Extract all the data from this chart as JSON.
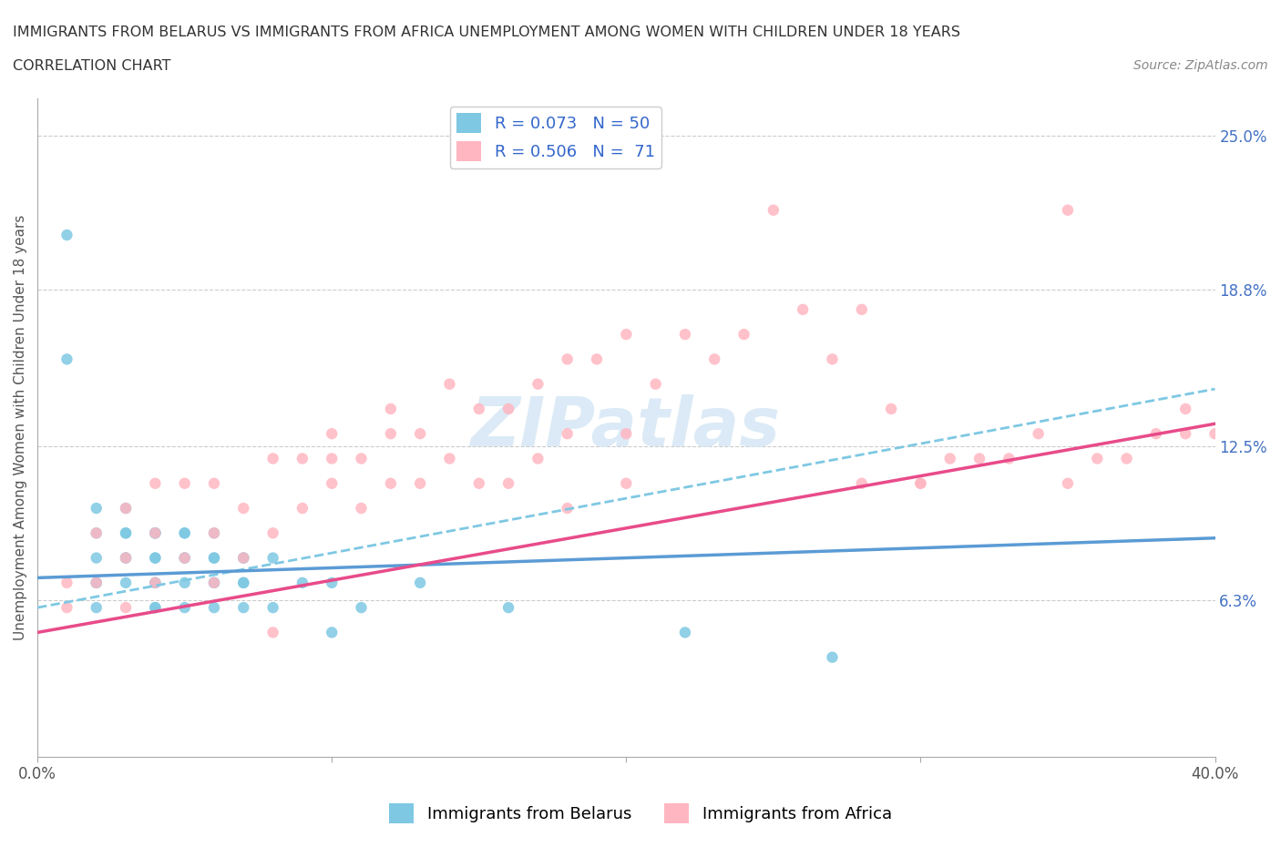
{
  "title_line1": "IMMIGRANTS FROM BELARUS VS IMMIGRANTS FROM AFRICA UNEMPLOYMENT AMONG WOMEN WITH CHILDREN UNDER 18 YEARS",
  "title_line2": "CORRELATION CHART",
  "source_text": "Source: ZipAtlas.com",
  "ylabel": "Unemployment Among Women with Children Under 18 years",
  "xlim": [
    0.0,
    0.4
  ],
  "ylim": [
    0.0,
    0.265
  ],
  "R_belarus": 0.073,
  "N_belarus": 50,
  "R_africa": 0.506,
  "N_africa": 71,
  "color_belarus": "#7EC8E3",
  "color_africa": "#FFB6C1",
  "trendline_belarus_solid": "#5B9BD5",
  "trendline_africa_solid": "#E84B8A",
  "trendline_belarus_dashed": "#7EC8E3",
  "background_color": "#FFFFFF",
  "watermark_text": "ZIPatlas",
  "bel_x": [
    0.01,
    0.02,
    0.02,
    0.02,
    0.02,
    0.02,
    0.02,
    0.03,
    0.03,
    0.03,
    0.03,
    0.03,
    0.03,
    0.04,
    0.04,
    0.04,
    0.04,
    0.04,
    0.04,
    0.04,
    0.04,
    0.04,
    0.05,
    0.05,
    0.05,
    0.05,
    0.05,
    0.05,
    0.06,
    0.06,
    0.06,
    0.06,
    0.06,
    0.06,
    0.07,
    0.07,
    0.07,
    0.07,
    0.07,
    0.08,
    0.08,
    0.09,
    0.1,
    0.1,
    0.11,
    0.13,
    0.16,
    0.22,
    0.27,
    0.01
  ],
  "bel_y": [
    0.21,
    0.1,
    0.09,
    0.08,
    0.07,
    0.07,
    0.06,
    0.1,
    0.09,
    0.09,
    0.08,
    0.08,
    0.07,
    0.09,
    0.09,
    0.09,
    0.08,
    0.08,
    0.07,
    0.07,
    0.06,
    0.06,
    0.09,
    0.09,
    0.08,
    0.08,
    0.07,
    0.06,
    0.09,
    0.08,
    0.08,
    0.07,
    0.07,
    0.06,
    0.08,
    0.08,
    0.07,
    0.07,
    0.06,
    0.08,
    0.06,
    0.07,
    0.07,
    0.05,
    0.06,
    0.07,
    0.06,
    0.05,
    0.04,
    0.16
  ],
  "afr_x": [
    0.01,
    0.01,
    0.02,
    0.02,
    0.03,
    0.03,
    0.03,
    0.04,
    0.04,
    0.04,
    0.05,
    0.05,
    0.06,
    0.06,
    0.06,
    0.07,
    0.07,
    0.08,
    0.08,
    0.09,
    0.09,
    0.1,
    0.1,
    0.11,
    0.11,
    0.12,
    0.12,
    0.13,
    0.13,
    0.14,
    0.14,
    0.15,
    0.15,
    0.16,
    0.17,
    0.17,
    0.18,
    0.18,
    0.19,
    0.2,
    0.2,
    0.21,
    0.22,
    0.23,
    0.24,
    0.25,
    0.26,
    0.27,
    0.28,
    0.29,
    0.3,
    0.31,
    0.32,
    0.33,
    0.34,
    0.35,
    0.35,
    0.36,
    0.37,
    0.38,
    0.39,
    0.39,
    0.4,
    0.28,
    0.3,
    0.16,
    0.18,
    0.2,
    0.1,
    0.12,
    0.08
  ],
  "afr_y": [
    0.07,
    0.06,
    0.09,
    0.07,
    0.1,
    0.08,
    0.06,
    0.11,
    0.09,
    0.07,
    0.11,
    0.08,
    0.11,
    0.09,
    0.07,
    0.1,
    0.08,
    0.12,
    0.09,
    0.12,
    0.1,
    0.13,
    0.11,
    0.12,
    0.1,
    0.13,
    0.11,
    0.13,
    0.11,
    0.15,
    0.12,
    0.14,
    0.11,
    0.14,
    0.15,
    0.12,
    0.16,
    0.13,
    0.16,
    0.17,
    0.13,
    0.15,
    0.17,
    0.16,
    0.17,
    0.22,
    0.18,
    0.16,
    0.18,
    0.14,
    0.11,
    0.12,
    0.12,
    0.12,
    0.13,
    0.11,
    0.22,
    0.12,
    0.12,
    0.13,
    0.14,
    0.13,
    0.13,
    0.11,
    0.11,
    0.11,
    0.1,
    0.11,
    0.12,
    0.14,
    0.05
  ]
}
